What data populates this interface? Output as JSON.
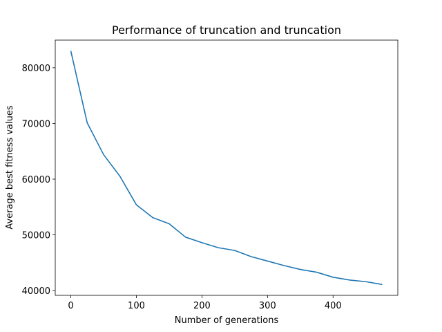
{
  "chart_data": {
    "type": "line",
    "title": "Performance of truncation and truncation",
    "xlabel": "Number of generations",
    "ylabel": "Average best fitness values",
    "xlim": [
      -23.75,
      498.75
    ],
    "ylim": [
      39150,
      84950
    ],
    "xticks": [
      0,
      100,
      200,
      300,
      400
    ],
    "yticks": [
      40000,
      50000,
      60000,
      70000,
      80000
    ],
    "grid": false,
    "series": [
      {
        "color": "#1f77b4",
        "x": [
          0,
          25,
          50,
          75,
          100,
          125,
          150,
          175,
          200,
          225,
          250,
          275,
          300,
          325,
          350,
          375,
          400,
          425,
          450,
          475
        ],
        "y": [
          83000,
          70100,
          64400,
          60500,
          55400,
          53100,
          52000,
          49600,
          48600,
          47700,
          47200,
          46100,
          45300,
          44500,
          43800,
          43300,
          42400,
          41900,
          41600,
          41100
        ]
      }
    ]
  }
}
